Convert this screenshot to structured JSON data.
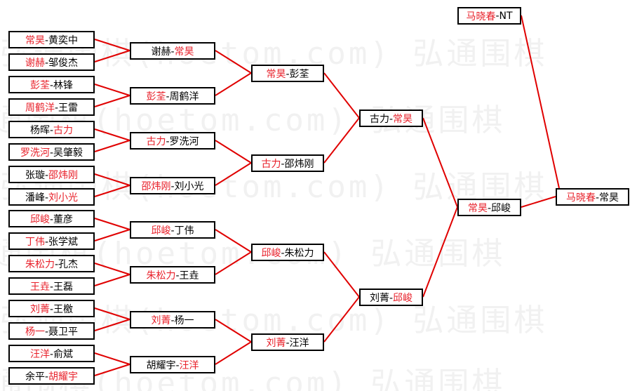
{
  "watermark": "弘通围棋(hoetom.com) 弘通围棋",
  "colors": {
    "winner": "#e8202a",
    "loser": "#000000",
    "line": "#e00000"
  },
  "rounds": [
    [
      [
        {
          "t": "常昊",
          "w": true
        },
        {
          "t": "-黄奕中",
          "w": false
        }
      ],
      [
        {
          "t": "谢赫",
          "w": true
        },
        {
          "t": "-邹俊杰",
          "w": false
        }
      ],
      [
        {
          "t": "彭荃",
          "w": true
        },
        {
          "t": "-林锋",
          "w": false
        }
      ],
      [
        {
          "t": "周鹤洋",
          "w": true
        },
        {
          "t": "-王雷",
          "w": false
        }
      ],
      [
        {
          "t": "杨晖-",
          "w": false
        },
        {
          "t": "古力",
          "w": true
        }
      ],
      [
        {
          "t": "罗洗河",
          "w": true
        },
        {
          "t": "-吴肇毅",
          "w": false
        }
      ],
      [
        {
          "t": "张璇-",
          "w": false
        },
        {
          "t": "邵炜刚",
          "w": true
        }
      ],
      [
        {
          "t": "潘峰-",
          "w": false
        },
        {
          "t": "刘小光",
          "w": true
        }
      ],
      [
        {
          "t": "邱峻",
          "w": true
        },
        {
          "t": "-董彦",
          "w": false
        }
      ],
      [
        {
          "t": "丁伟",
          "w": true
        },
        {
          "t": "-张学斌",
          "w": false
        }
      ],
      [
        {
          "t": "朱松力",
          "w": true
        },
        {
          "t": "-孔杰",
          "w": false
        }
      ],
      [
        {
          "t": "王垚",
          "w": true
        },
        {
          "t": "-王磊",
          "w": false
        }
      ],
      [
        {
          "t": "刘菁",
          "w": true
        },
        {
          "t": "-王檄",
          "w": false
        }
      ],
      [
        {
          "t": "杨一",
          "w": true
        },
        {
          "t": "-聂卫平",
          "w": false
        }
      ],
      [
        {
          "t": "汪洋",
          "w": true
        },
        {
          "t": "-俞斌",
          "w": false
        }
      ],
      [
        {
          "t": "余平-",
          "w": false
        },
        {
          "t": "胡耀宇",
          "w": true
        }
      ]
    ],
    [
      [
        {
          "t": "谢赫-",
          "w": false
        },
        {
          "t": "常昊",
          "w": true
        }
      ],
      [
        {
          "t": "彭荃",
          "w": true
        },
        {
          "t": "-周鹤洋",
          "w": false
        }
      ],
      [
        {
          "t": "古力",
          "w": true
        },
        {
          "t": "-罗洗河",
          "w": false
        }
      ],
      [
        {
          "t": "邵炜刚",
          "w": true
        },
        {
          "t": "-刘小光",
          "w": false
        }
      ],
      [
        {
          "t": "邱峻",
          "w": true
        },
        {
          "t": "-丁伟",
          "w": false
        }
      ],
      [
        {
          "t": "朱松力",
          "w": true
        },
        {
          "t": "-王垚",
          "w": false
        }
      ],
      [
        {
          "t": "刘菁",
          "w": true
        },
        {
          "t": "-杨一",
          "w": false
        }
      ],
      [
        {
          "t": "胡耀宇-",
          "w": false
        },
        {
          "t": "汪洋",
          "w": true
        }
      ]
    ],
    [
      [
        {
          "t": "常昊",
          "w": true
        },
        {
          "t": "-彭荃",
          "w": false
        }
      ],
      [
        {
          "t": "古力",
          "w": true
        },
        {
          "t": "-邵炜刚",
          "w": false
        }
      ],
      [
        {
          "t": "邱峻",
          "w": true
        },
        {
          "t": "-朱松力",
          "w": false
        }
      ],
      [
        {
          "t": "刘菁",
          "w": true
        },
        {
          "t": "-汪洋",
          "w": false
        }
      ]
    ],
    [
      [
        {
          "t": "古力-",
          "w": false
        },
        {
          "t": "常昊",
          "w": true
        }
      ],
      [
        {
          "t": "刘菁-",
          "w": false
        },
        {
          "t": "邱峻",
          "w": true
        }
      ]
    ],
    [
      [
        {
          "t": "常昊",
          "w": true
        },
        {
          "t": "-邱峻",
          "w": false
        }
      ]
    ],
    [
      [
        {
          "t": "马晓春",
          "w": true
        },
        {
          "t": "-常昊",
          "w": false
        }
      ]
    ]
  ],
  "seed": [
    {
      "t": "马晓春",
      "w": true
    },
    {
      "t": "-NT",
      "w": false
    }
  ]
}
